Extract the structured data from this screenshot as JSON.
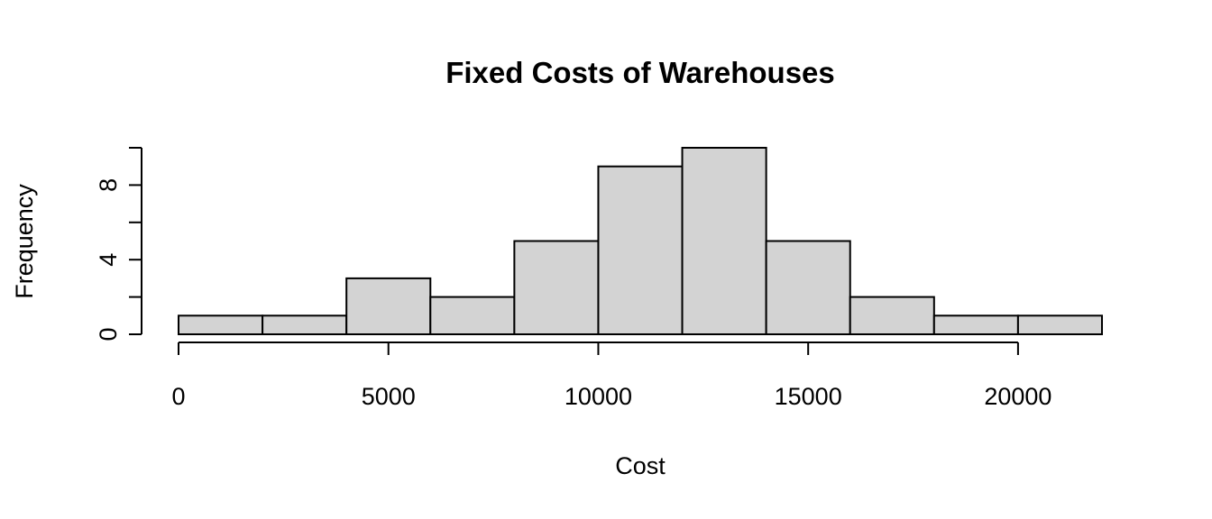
{
  "chart_data": {
    "type": "bar",
    "title": "Fixed Costs of Warehouses",
    "xlabel": "Cost",
    "ylabel": "Frequency",
    "bin_edges": [
      0,
      2000,
      4000,
      6000,
      8000,
      10000,
      12000,
      14000,
      16000,
      18000,
      20000,
      22000
    ],
    "values": [
      1,
      1,
      3,
      2,
      5,
      9,
      10,
      5,
      2,
      1,
      1
    ],
    "xlim": [
      0,
      22000
    ],
    "ylim": [
      0,
      10
    ],
    "x_ticks": [
      0,
      5000,
      10000,
      15000,
      20000
    ],
    "x_tick_labels": [
      "0",
      "5000",
      "10000",
      "15000",
      "20000"
    ],
    "y_ticks": [
      0,
      2,
      4,
      6,
      8,
      10
    ],
    "y_tick_labels": [
      "0",
      "4",
      "8"
    ],
    "y_labeled_ticks": [
      0,
      4,
      8
    ],
    "bar_color": "#d3d3d3",
    "border_color": "#000000",
    "grid": false,
    "legend": "none"
  }
}
